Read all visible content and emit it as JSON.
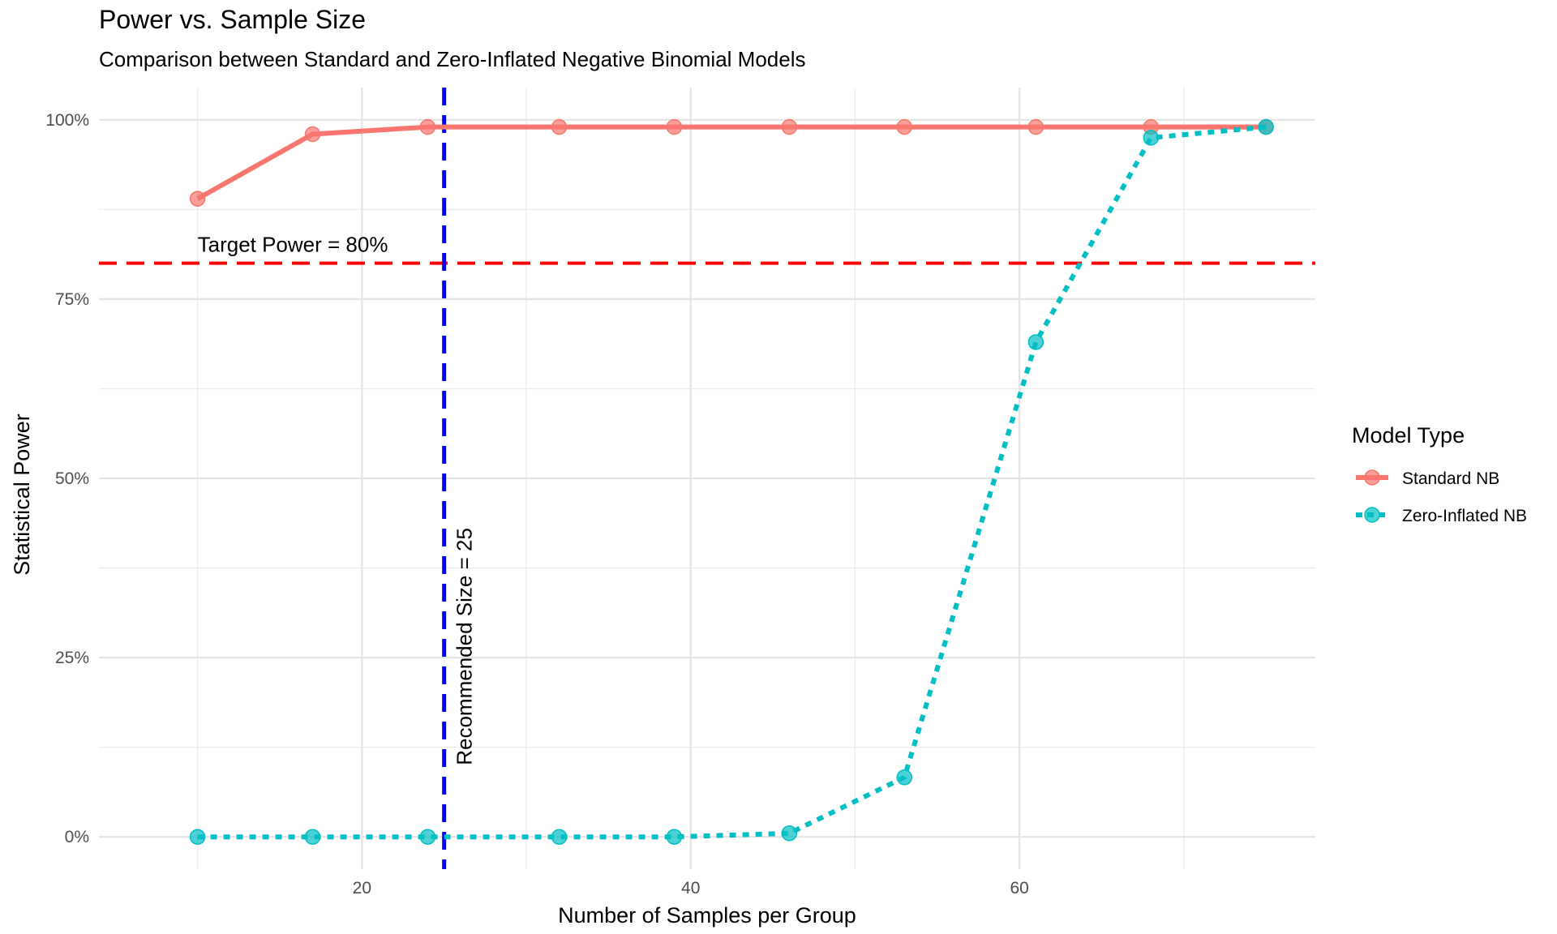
{
  "chart_data": {
    "type": "line",
    "title": "Power vs. Sample Size",
    "subtitle": "Comparison between Standard and Zero-Inflated Negative Binomial Models",
    "xlabel": "Number of Samples per Group",
    "ylabel": "Statistical Power",
    "xlim": [
      4,
      78
    ],
    "ylim": [
      -0.045,
      1.045
    ],
    "x_ticks": [
      20,
      40,
      60
    ],
    "x_tick_labels": [
      "20",
      "40",
      "60"
    ],
    "y_ticks": [
      0,
      0.25,
      0.5,
      0.75,
      1.0
    ],
    "y_tick_labels": [
      "0%",
      "25%",
      "50%",
      "75%",
      "100%"
    ],
    "grid": true,
    "legend_title": "Model Type",
    "legend_position": "right",
    "x": [
      10,
      17,
      24,
      32,
      39,
      46,
      53,
      61,
      68,
      75
    ],
    "series": [
      {
        "name": "Standard NB",
        "color": "#F8766D",
        "line_style": "solid",
        "values": [
          0.89,
          0.98,
          0.99,
          0.99,
          0.99,
          0.99,
          0.99,
          0.99,
          0.99,
          0.99
        ]
      },
      {
        "name": "Zero-Inflated NB",
        "color": "#00BFC4",
        "line_style": "dotted",
        "values": [
          0.0,
          0.0,
          0.0,
          0.0,
          0.0,
          0.005,
          0.083,
          0.69,
          0.975,
          0.99
        ]
      }
    ],
    "reference_lines": [
      {
        "orientation": "horizontal",
        "value": 0.8,
        "color": "#FF0000",
        "style": "dashed",
        "label": "Target Power = 80%"
      },
      {
        "orientation": "vertical",
        "value": 25,
        "color": "#0000FF",
        "style": "dashed",
        "label": "Recommended Size = 25"
      }
    ]
  }
}
